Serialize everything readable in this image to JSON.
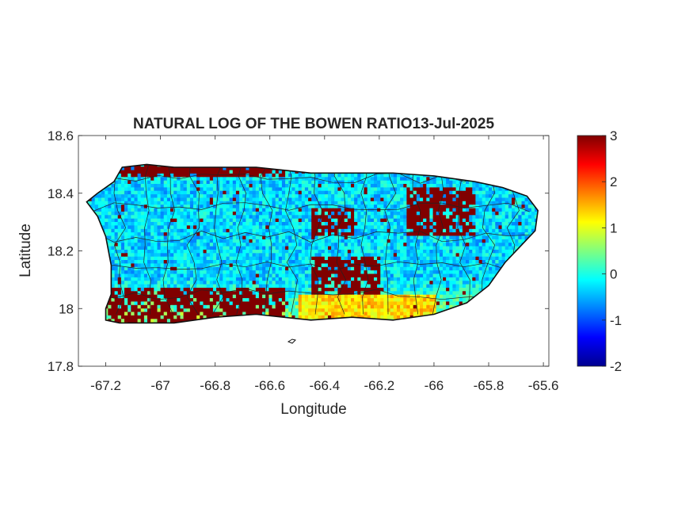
{
  "title": "NATURAL LOG OF THE BOWEN RATIO13-Jul-2025",
  "xlabel": "Longitude",
  "ylabel": "Latitude",
  "x_axis": {
    "min": -67.3,
    "max": -65.58,
    "ticks": [
      -67.2,
      -67,
      -66.8,
      -66.6,
      -66.4,
      -66.2,
      -66,
      -65.8,
      -65.6
    ],
    "tick_labels": [
      "-67.2",
      "-67",
      "-66.8",
      "-66.6",
      "-66.4",
      "-66.2",
      "-66",
      "-65.8",
      "-65.6"
    ]
  },
  "y_axis": {
    "min": 17.8,
    "max": 18.6,
    "ticks": [
      17.8,
      18,
      18.2,
      18.4,
      18.6
    ],
    "tick_labels": [
      "17.8",
      "18",
      "18.2",
      "18.4",
      "18.6"
    ]
  },
  "colorbar": {
    "colormap": "jet",
    "min": -2,
    "max": 3,
    "ticks": [
      -2,
      -1,
      0,
      1,
      2,
      3
    ],
    "tick_labels": [
      "-2",
      "-1",
      "0",
      "1",
      "2",
      "3"
    ]
  },
  "chart_data": {
    "type": "heatmap",
    "title": "NATURAL LOG OF THE BOWEN RATIO13-Jul-2025",
    "xlabel": "Longitude",
    "ylabel": "Latitude",
    "xlim": [
      -67.3,
      -65.58
    ],
    "ylim": [
      17.8,
      18.6
    ],
    "clim": [
      -2,
      3
    ],
    "colormap": "jet",
    "grid": false,
    "region": "Puerto Rico",
    "coastline": [
      [
        -67.27,
        18.37
      ],
      [
        -67.23,
        18.4
      ],
      [
        -67.17,
        18.44
      ],
      [
        -67.14,
        18.49
      ],
      [
        -67.05,
        18.5
      ],
      [
        -66.95,
        18.49
      ],
      [
        -66.8,
        18.49
      ],
      [
        -66.65,
        18.49
      ],
      [
        -66.55,
        18.48
      ],
      [
        -66.45,
        18.47
      ],
      [
        -66.3,
        18.47
      ],
      [
        -66.15,
        18.47
      ],
      [
        -66.0,
        18.46
      ],
      [
        -65.85,
        18.44
      ],
      [
        -65.75,
        18.42
      ],
      [
        -65.66,
        18.39
      ],
      [
        -65.62,
        18.34
      ],
      [
        -65.63,
        18.27
      ],
      [
        -65.68,
        18.22
      ],
      [
        -65.74,
        18.16
      ],
      [
        -65.8,
        18.08
      ],
      [
        -65.88,
        18.02
      ],
      [
        -66.0,
        17.98
      ],
      [
        -66.15,
        17.96
      ],
      [
        -66.3,
        17.97
      ],
      [
        -66.45,
        17.96
      ],
      [
        -66.55,
        17.97
      ],
      [
        -66.65,
        17.98
      ],
      [
        -66.8,
        17.97
      ],
      [
        -66.95,
        17.95
      ],
      [
        -67.05,
        17.95
      ],
      [
        -67.15,
        17.95
      ],
      [
        -67.2,
        17.96
      ],
      [
        -67.2,
        18.0
      ],
      [
        -67.18,
        18.05
      ],
      [
        -67.18,
        18.15
      ],
      [
        -67.2,
        18.25
      ],
      [
        -67.23,
        18.32
      ],
      [
        -67.27,
        18.37
      ]
    ],
    "value_zones": [
      {
        "lon": [
          -67.22,
          -66.55
        ],
        "lat": [
          17.94,
          18.07
        ],
        "value": 3
      },
      {
        "lon": [
          -67.15,
          -66.55
        ],
        "lat": [
          18.45,
          18.5
        ],
        "value": 3
      },
      {
        "lon": [
          -66.45,
          -66.2
        ],
        "lat": [
          18.05,
          18.18
        ],
        "value": 3
      },
      {
        "lon": [
          -66.1,
          -65.85
        ],
        "lat": [
          18.25,
          18.42
        ],
        "value": 3
      },
      {
        "lon": [
          -66.45,
          -66.3
        ],
        "lat": [
          18.25,
          18.35
        ],
        "value": 3
      },
      {
        "lon": [
          -66.5,
          -66.0
        ],
        "lat": [
          17.96,
          18.04
        ],
        "value": 1.3
      }
    ],
    "background_value": -0.3
  }
}
